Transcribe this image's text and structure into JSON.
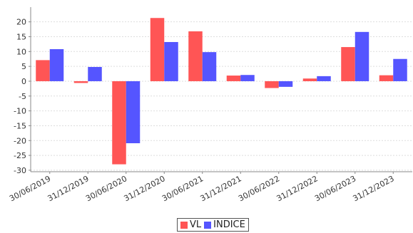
{
  "chart_data": {
    "type": "bar",
    "title": "",
    "xlabel": "",
    "ylabel": "",
    "categories": [
      "30/06/2019",
      "31/12/2019",
      "30/06/2020",
      "31/12/2020",
      "30/06/2021",
      "31/12/2021",
      "30/06/2022",
      "31/12/2022",
      "30/06/2023",
      "31/12/2023"
    ],
    "series": [
      {
        "name": "VL",
        "color": "#ff5555",
        "values": [
          7.1,
          -0.6,
          -28.0,
          21.3,
          16.8,
          1.9,
          -2.3,
          0.9,
          11.5,
          2.0
        ]
      },
      {
        "name": "INDICE",
        "color": "#5555ff",
        "values": [
          10.8,
          4.8,
          -20.9,
          13.2,
          9.8,
          2.1,
          -1.9,
          1.7,
          16.6,
          7.5
        ]
      }
    ],
    "ylim": [
      -30,
      22
    ],
    "yticks": [
      -30,
      -25,
      -20,
      -15,
      -10,
      -5,
      0,
      5,
      10,
      15,
      20
    ],
    "grid": true,
    "legend_position": "bottom-center"
  }
}
